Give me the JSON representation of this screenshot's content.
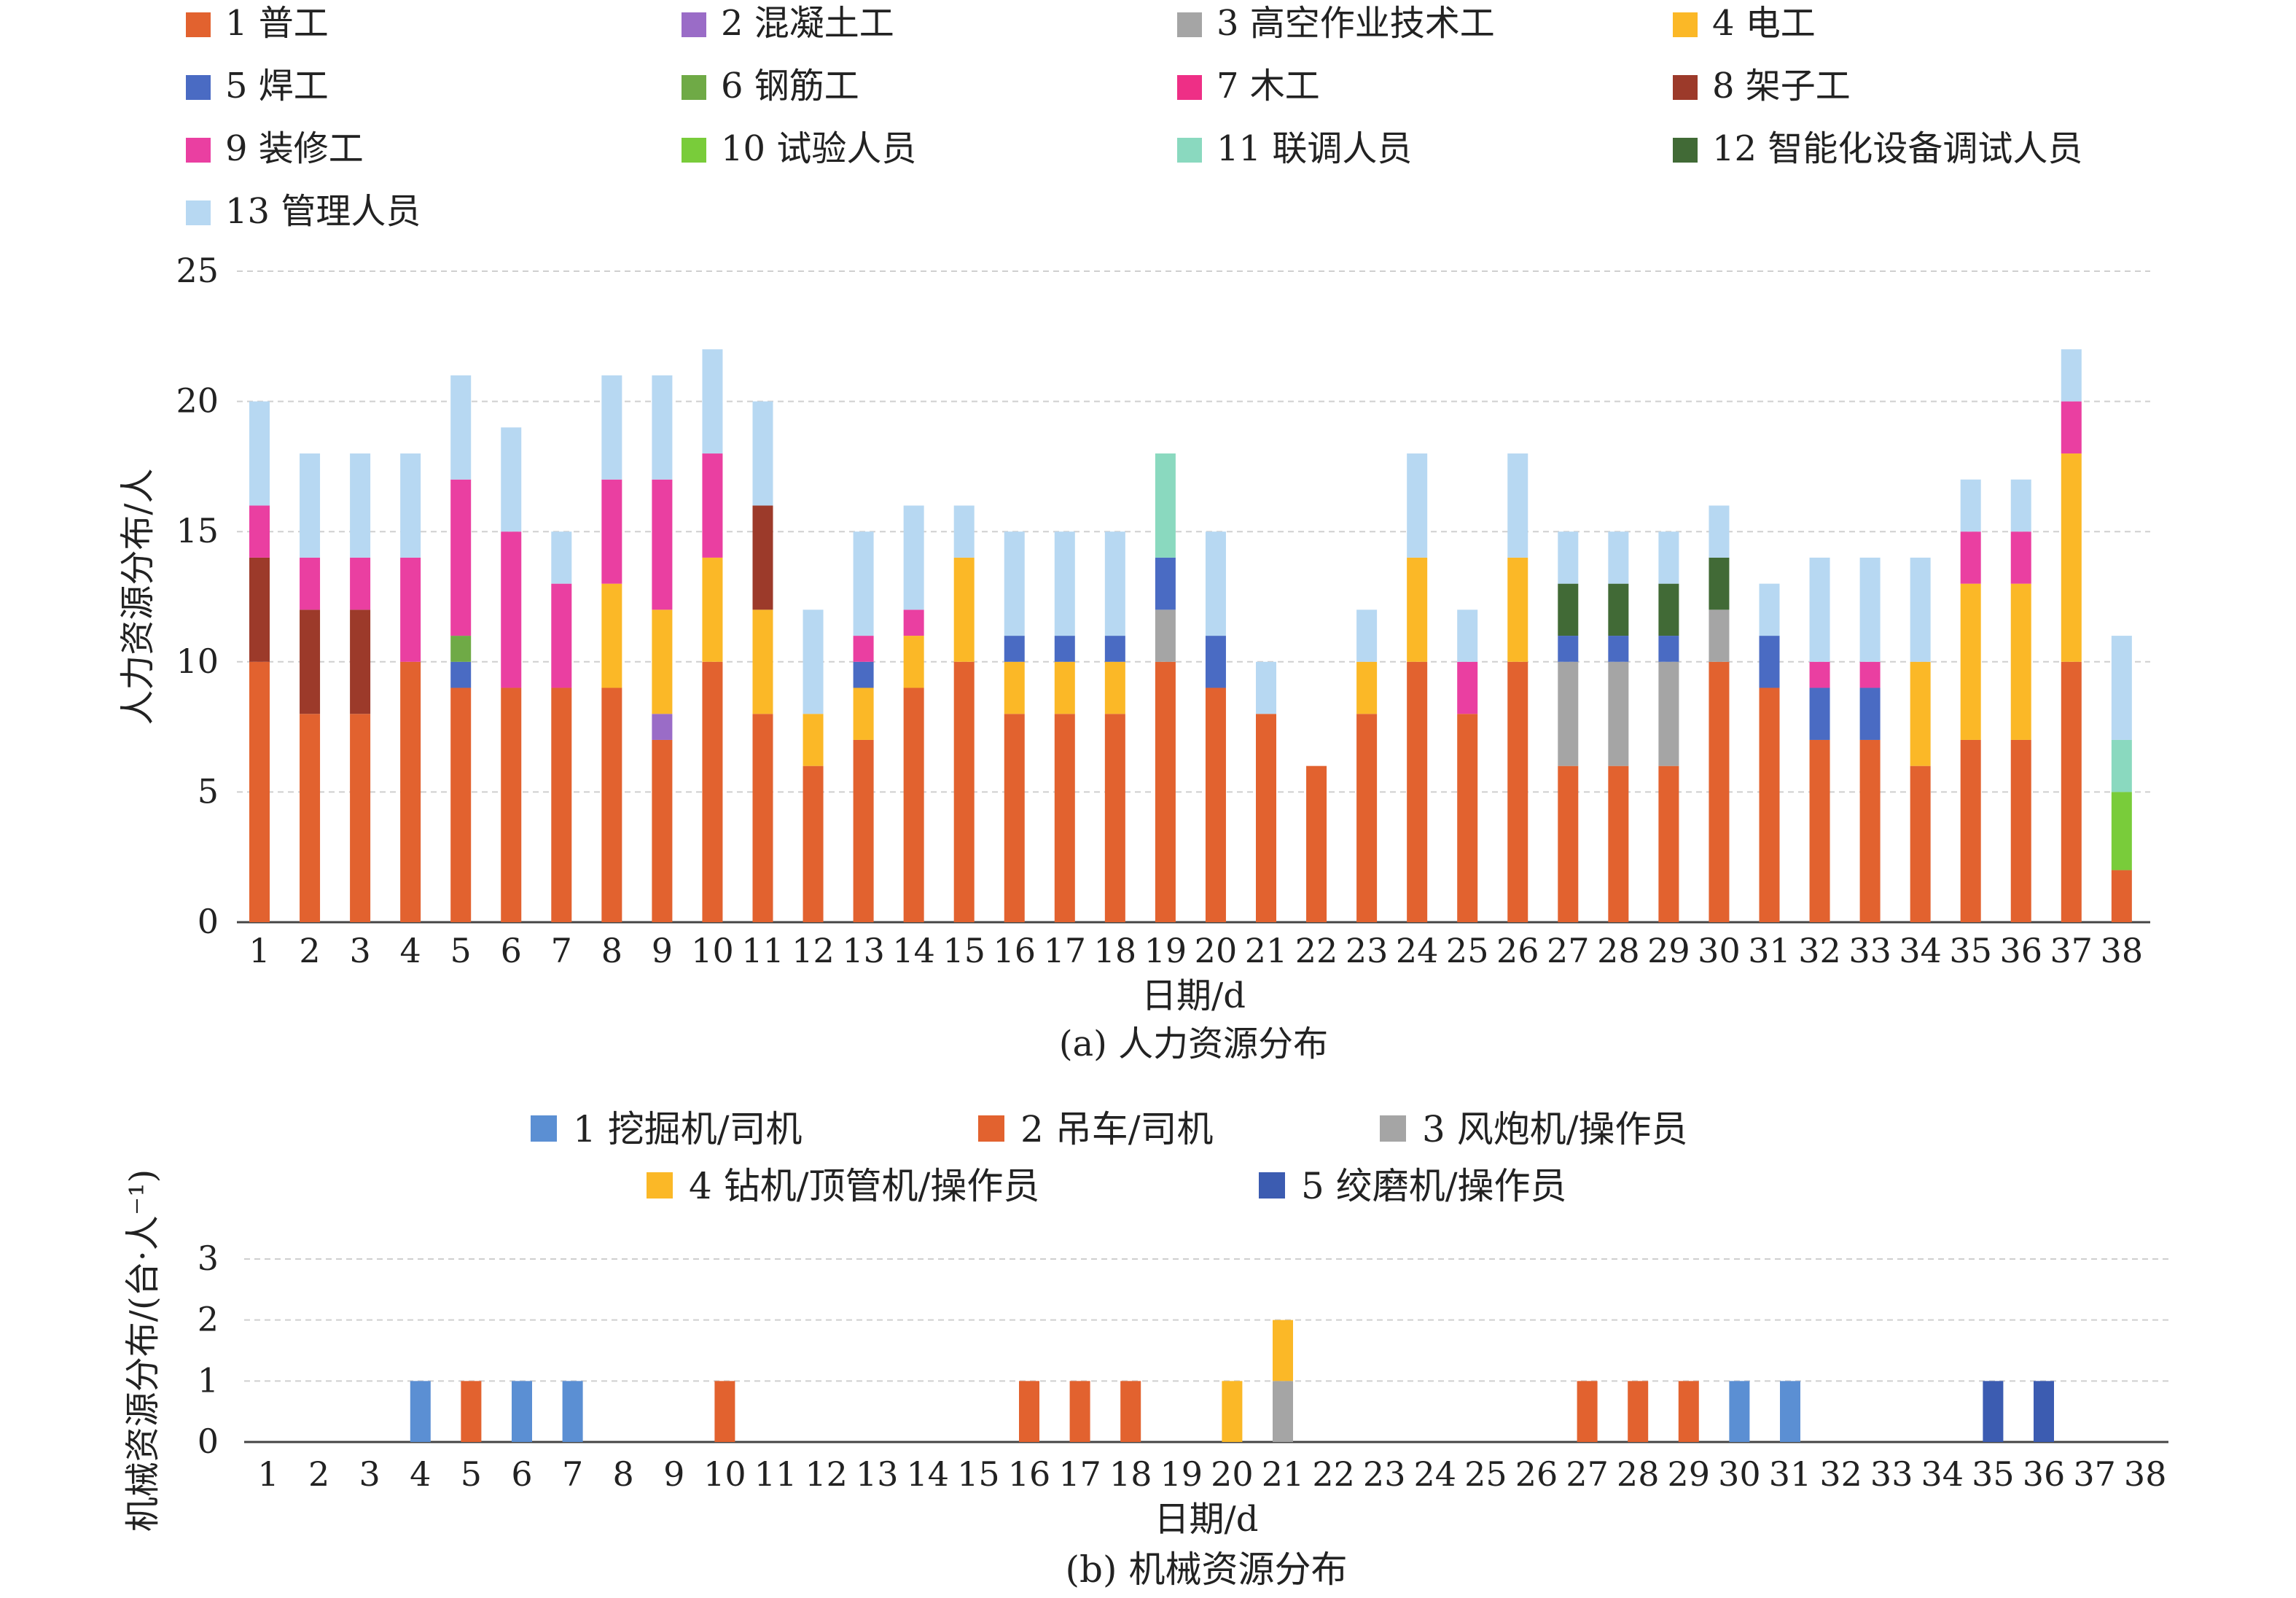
{
  "chart_data": [
    {
      "type": "bar",
      "stacked": true,
      "ylabel": "人力资源分布/人",
      "xlabel": "日期/d",
      "caption": "(a) 人力资源分布",
      "ylim": [
        0,
        25
      ],
      "yticks": [
        "0",
        "5",
        "10",
        "15",
        "20",
        "25"
      ],
      "grid": true,
      "legend_position": "top",
      "categories": [
        "1",
        "2",
        "3",
        "4",
        "5",
        "6",
        "7",
        "8",
        "9",
        "10",
        "11",
        "12",
        "13",
        "14",
        "15",
        "16",
        "17",
        "18",
        "19",
        "20",
        "21",
        "22",
        "23",
        "24",
        "25",
        "26",
        "27",
        "28",
        "29",
        "30",
        "31",
        "32",
        "33",
        "34",
        "35",
        "36",
        "37",
        "38"
      ],
      "series": [
        {
          "name": "1 普工",
          "color": "#e2622f",
          "values": [
            10,
            8,
            8,
            10,
            9,
            9,
            9,
            9,
            7,
            10,
            8,
            6,
            7,
            9,
            10,
            8,
            8,
            8,
            10,
            9,
            8,
            6,
            8,
            10,
            8,
            10,
            6,
            6,
            6,
            10,
            9,
            7,
            7,
            6,
            7,
            7,
            10,
            2
          ]
        },
        {
          "name": "2 混凝土工",
          "color": "#9a6cc7",
          "values": [
            0,
            0,
            0,
            0,
            0,
            0,
            0,
            0,
            1,
            0,
            0,
            0,
            0,
            0,
            0,
            0,
            0,
            0,
            0,
            0,
            0,
            0,
            0,
            0,
            0,
            0,
            0,
            0,
            0,
            0,
            0,
            0,
            0,
            0,
            0,
            0,
            0,
            0
          ]
        },
        {
          "name": "3 高空作业技术工",
          "color": "#a5a5a5",
          "values": [
            0,
            0,
            0,
            0,
            0,
            0,
            0,
            0,
            0,
            0,
            0,
            0,
            0,
            0,
            0,
            0,
            0,
            0,
            2,
            0,
            0,
            0,
            0,
            0,
            0,
            0,
            4,
            4,
            4,
            2,
            0,
            0,
            0,
            0,
            0,
            0,
            0,
            0
          ]
        },
        {
          "name": "4 电工",
          "color": "#fbb827",
          "values": [
            0,
            0,
            0,
            0,
            0,
            0,
            0,
            4,
            4,
            4,
            4,
            2,
            2,
            2,
            4,
            2,
            2,
            2,
            0,
            0,
            0,
            0,
            2,
            4,
            0,
            4,
            0,
            0,
            0,
            0,
            0,
            0,
            0,
            4,
            6,
            6,
            8,
            0
          ]
        },
        {
          "name": "5 焊工",
          "color": "#4a6bc3",
          "values": [
            0,
            0,
            0,
            0,
            1,
            0,
            0,
            0,
            0,
            0,
            0,
            0,
            1,
            0,
            0,
            1,
            1,
            1,
            2,
            2,
            0,
            0,
            0,
            0,
            0,
            0,
            1,
            1,
            1,
            0,
            2,
            2,
            2,
            0,
            0,
            0,
            0,
            0
          ]
        },
        {
          "name": "6 钢筋工",
          "color": "#6faa46",
          "values": [
            0,
            0,
            0,
            0,
            1,
            0,
            0,
            0,
            0,
            0,
            0,
            0,
            0,
            0,
            0,
            0,
            0,
            0,
            0,
            0,
            0,
            0,
            0,
            0,
            0,
            0,
            0,
            0,
            0,
            0,
            0,
            0,
            0,
            0,
            0,
            0,
            0,
            0
          ]
        },
        {
          "name": "7 木工",
          "color": "#ee2f86",
          "values": [
            0,
            0,
            0,
            0,
            0,
            0,
            0,
            0,
            0,
            0,
            0,
            0,
            0,
            0,
            0,
            0,
            0,
            0,
            0,
            0,
            0,
            0,
            0,
            0,
            0,
            0,
            0,
            0,
            0,
            0,
            0,
            0,
            0,
            0,
            0,
            0,
            0,
            0
          ]
        },
        {
          "name": "8 架子工",
          "color": "#9c3a2a",
          "values": [
            4,
            4,
            4,
            0,
            0,
            0,
            0,
            0,
            0,
            0,
            4,
            0,
            0,
            0,
            0,
            0,
            0,
            0,
            0,
            0,
            0,
            0,
            0,
            0,
            0,
            0,
            0,
            0,
            0,
            0,
            0,
            0,
            0,
            0,
            0,
            0,
            0,
            0
          ]
        },
        {
          "name": "9 装修工",
          "color": "#ea3fa1",
          "values": [
            2,
            2,
            2,
            4,
            6,
            6,
            4,
            4,
            5,
            4,
            0,
            0,
            1,
            1,
            0,
            0,
            0,
            0,
            0,
            0,
            0,
            0,
            0,
            0,
            2,
            0,
            0,
            0,
            0,
            0,
            0,
            1,
            1,
            0,
            2,
            2,
            2,
            0
          ]
        },
        {
          "name": "10 试验人员",
          "color": "#79cc3a",
          "values": [
            0,
            0,
            0,
            0,
            0,
            0,
            0,
            0,
            0,
            0,
            0,
            0,
            0,
            0,
            0,
            0,
            0,
            0,
            0,
            0,
            0,
            0,
            0,
            0,
            0,
            0,
            0,
            0,
            0,
            0,
            0,
            0,
            0,
            0,
            0,
            0,
            0,
            3
          ]
        },
        {
          "name": "11 联调人员",
          "color": "#8ad9bf",
          "values": [
            0,
            0,
            0,
            0,
            0,
            0,
            0,
            0,
            0,
            0,
            0,
            0,
            0,
            0,
            0,
            0,
            0,
            0,
            4,
            0,
            0,
            0,
            0,
            0,
            0,
            0,
            0,
            0,
            0,
            0,
            0,
            0,
            0,
            0,
            0,
            0,
            0,
            2
          ]
        },
        {
          "name": "12 智能化设备调试人员",
          "color": "#416a36",
          "values": [
            0,
            0,
            0,
            0,
            0,
            0,
            0,
            0,
            0,
            0,
            0,
            0,
            0,
            0,
            0,
            0,
            0,
            0,
            0,
            0,
            0,
            0,
            0,
            0,
            0,
            0,
            2,
            2,
            2,
            2,
            0,
            0,
            0,
            0,
            0,
            0,
            0,
            0
          ]
        },
        {
          "name": "13 管理人员",
          "color": "#b7d8f2",
          "values": [
            4,
            4,
            4,
            4,
            4,
            4,
            2,
            4,
            4,
            4,
            4,
            4,
            4,
            4,
            2,
            4,
            4,
            4,
            0,
            4,
            2,
            0,
            2,
            4,
            2,
            4,
            2,
            2,
            2,
            2,
            2,
            4,
            4,
            4,
            2,
            2,
            2,
            4
          ]
        }
      ]
    },
    {
      "type": "bar",
      "stacked": true,
      "ylabel": "机械资源分布/(台·人⁻¹)",
      "xlabel": "日期/d",
      "caption": "(b) 机械资源分布",
      "ylim": [
        0,
        3
      ],
      "yticks": [
        "0",
        "1",
        "2",
        "3"
      ],
      "grid": true,
      "legend_position": "top",
      "categories": [
        "1",
        "2",
        "3",
        "4",
        "5",
        "6",
        "7",
        "8",
        "9",
        "10",
        "11",
        "12",
        "13",
        "14",
        "15",
        "16",
        "17",
        "18",
        "19",
        "20",
        "21",
        "22",
        "23",
        "24",
        "25",
        "26",
        "27",
        "28",
        "29",
        "30",
        "31",
        "32",
        "33",
        "34",
        "35",
        "36",
        "37",
        "38"
      ],
      "series": [
        {
          "name": "1 挖掘机/司机",
          "color": "#5b8fd3",
          "values": [
            0,
            0,
            0,
            1,
            0,
            1,
            1,
            0,
            0,
            0,
            0,
            0,
            0,
            0,
            0,
            0,
            0,
            0,
            0,
            0,
            0,
            0,
            0,
            0,
            0,
            0,
            0,
            0,
            0,
            1,
            1,
            0,
            0,
            0,
            0,
            0,
            0,
            0
          ]
        },
        {
          "name": "2 吊车/司机",
          "color": "#e2622f",
          "values": [
            0,
            0,
            0,
            0,
            1,
            0,
            0,
            0,
            0,
            1,
            0,
            0,
            0,
            0,
            0,
            1,
            1,
            1,
            0,
            0,
            0,
            0,
            0,
            0,
            0,
            0,
            1,
            1,
            1,
            0,
            0,
            0,
            0,
            0,
            0,
            0,
            0,
            0
          ]
        },
        {
          "name": "3 风炮机/操作员",
          "color": "#a5a5a5",
          "values": [
            0,
            0,
            0,
            0,
            0,
            0,
            0,
            0,
            0,
            0,
            0,
            0,
            0,
            0,
            0,
            0,
            0,
            0,
            0,
            0,
            1,
            0,
            0,
            0,
            0,
            0,
            0,
            0,
            0,
            0,
            0,
            0,
            0,
            0,
            0,
            0,
            0,
            0
          ]
        },
        {
          "name": "4 钻机/顶管机/操作员",
          "color": "#fbb827",
          "values": [
            0,
            0,
            0,
            0,
            0,
            0,
            0,
            0,
            0,
            0,
            0,
            0,
            0,
            0,
            0,
            0,
            0,
            0,
            0,
            1,
            1,
            0,
            0,
            0,
            0,
            0,
            0,
            0,
            0,
            0,
            0,
            0,
            0,
            0,
            0,
            0,
            0,
            0
          ]
        },
        {
          "name": "5 绞磨机/操作员",
          "color": "#3c5cb1",
          "values": [
            0,
            0,
            0,
            0,
            0,
            0,
            0,
            0,
            0,
            0,
            0,
            0,
            0,
            0,
            0,
            0,
            0,
            0,
            0,
            0,
            0,
            0,
            0,
            0,
            0,
            0,
            0,
            0,
            0,
            0,
            0,
            0,
            0,
            0,
            1,
            1,
            0,
            0
          ]
        }
      ]
    }
  ]
}
